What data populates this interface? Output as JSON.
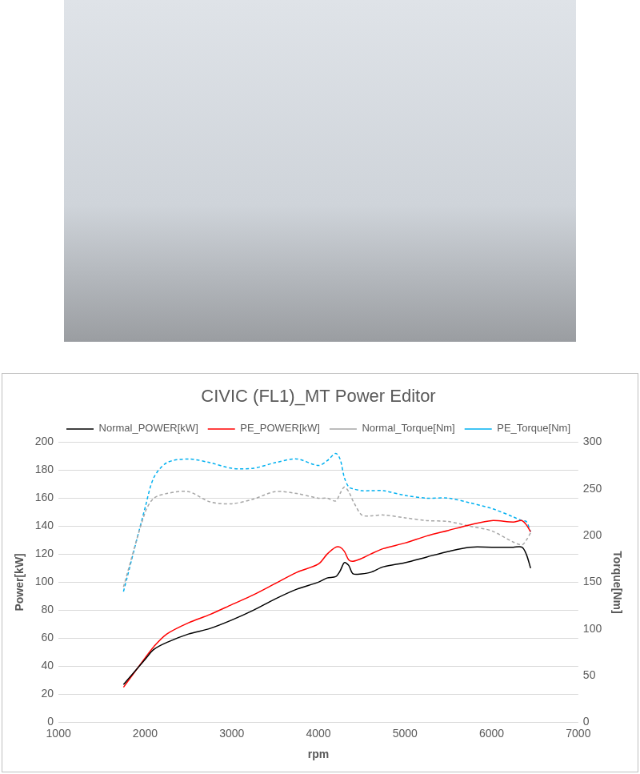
{
  "chart_data": {
    "type": "line",
    "title": "CIVIC (FL1)_MT Power Editor",
    "x_label": "rpm",
    "y_label": "Power[kW]",
    "y2_label": "Torque[Nm]",
    "x": [
      1750,
      2000,
      2100,
      2250,
      2500,
      2750,
      3000,
      3250,
      3500,
      3750,
      4000,
      4100,
      4200,
      4250,
      4300,
      4350,
      4400,
      4500,
      4600,
      4750,
      5000,
      5250,
      5500,
      5750,
      6000,
      6250,
      6350,
      6400,
      6450
    ],
    "series": [
      {
        "name": "Normal_POWER[kW]",
        "color": "#000000",
        "line_style": "solid",
        "values": [
          27,
          45,
          52,
          57,
          63,
          67,
          73,
          80,
          88,
          95,
          100,
          103,
          104,
          108,
          114,
          112,
          106,
          106,
          107,
          111,
          114,
          118,
          122,
          125,
          125,
          125,
          125,
          120,
          110
        ]
      },
      {
        "name": "PE_POWER[kW]",
        "color": "#ff0000",
        "line_style": "solid",
        "values": [
          25,
          46,
          54,
          63,
          71,
          77,
          84,
          91,
          99,
          107,
          113,
          120,
          125,
          125,
          122,
          116,
          115,
          117,
          120,
          124,
          128,
          133,
          137,
          141,
          144,
          143,
          144,
          141,
          136
        ]
      },
      {
        "name": "Normal_Torque[Nm]",
        "color": "#a6a6a6",
        "line_style": "dashed",
        "axis": "y2",
        "values": [
          145,
          225,
          240,
          245,
          247,
          236,
          234,
          239,
          247,
          245,
          240,
          240,
          237,
          245,
          252,
          247,
          237,
          222,
          221,
          222,
          219,
          216,
          215,
          210,
          205,
          193,
          190,
          195,
          203
        ]
      },
      {
        "name": "PE_Torque[Nm]",
        "color": "#00b0f0",
        "line_style": "dashed",
        "axis": "y2",
        "values": [
          140,
          230,
          262,
          278,
          282,
          278,
          272,
          272,
          278,
          282,
          275,
          280,
          288,
          282,
          262,
          252,
          250,
          248,
          248,
          248,
          243,
          240,
          240,
          235,
          229,
          220,
          216,
          215,
          204
        ]
      }
    ],
    "xlim": [
      1000,
      7000
    ],
    "xticks": [
      1000,
      2000,
      3000,
      4000,
      5000,
      6000,
      7000
    ],
    "ylim": [
      0,
      200
    ],
    "yticks": [
      0,
      20,
      40,
      60,
      80,
      100,
      120,
      140,
      160,
      180,
      200
    ],
    "y2lim": [
      0,
      300
    ],
    "y2ticks": [
      0,
      50,
      100,
      150,
      200,
      250,
      300
    ],
    "grid": true,
    "legend": "top"
  }
}
